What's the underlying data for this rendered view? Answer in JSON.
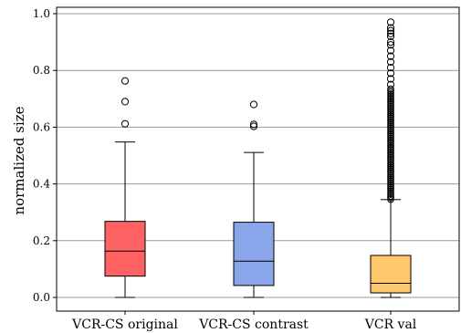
{
  "chart_data": {
    "type": "box",
    "title": "",
    "xlabel": "",
    "ylabel": "normalized size",
    "ylim": [
      -0.045,
      1.02
    ],
    "yticks": [
      "0.0",
      "0.2",
      "0.4",
      "0.6",
      "0.8",
      "1.0"
    ],
    "grid": "horizontal",
    "categories": [
      "VCR-CS original",
      "VCR-CS contrast",
      "VCR val"
    ],
    "boxes": [
      {
        "category": "VCR-CS original",
        "color": "#ff6262",
        "whisker_low": 0.0,
        "q1": 0.075,
        "median": 0.163,
        "q3": 0.268,
        "whisker_high": 0.548,
        "outliers": [
          0.612,
          0.69,
          0.763
        ]
      },
      {
        "category": "VCR-CS contrast",
        "color": "#8aa6ea",
        "whisker_low": 0.0,
        "q1": 0.042,
        "median": 0.128,
        "q3": 0.265,
        "whisker_high": 0.511,
        "outliers": [
          0.603,
          0.61,
          0.68
        ]
      },
      {
        "category": "VCR val",
        "color": "#ffc86b",
        "whisker_low": 0.0,
        "q1": 0.016,
        "median": 0.05,
        "q3": 0.148,
        "whisker_high": 0.345,
        "outliers_dense_range": [
          0.345,
          0.74
        ],
        "outliers": [
          0.75,
          0.77,
          0.79,
          0.81,
          0.83,
          0.85,
          0.87,
          0.89,
          0.9,
          0.92,
          0.93,
          0.94,
          0.95,
          0.97
        ]
      }
    ]
  }
}
